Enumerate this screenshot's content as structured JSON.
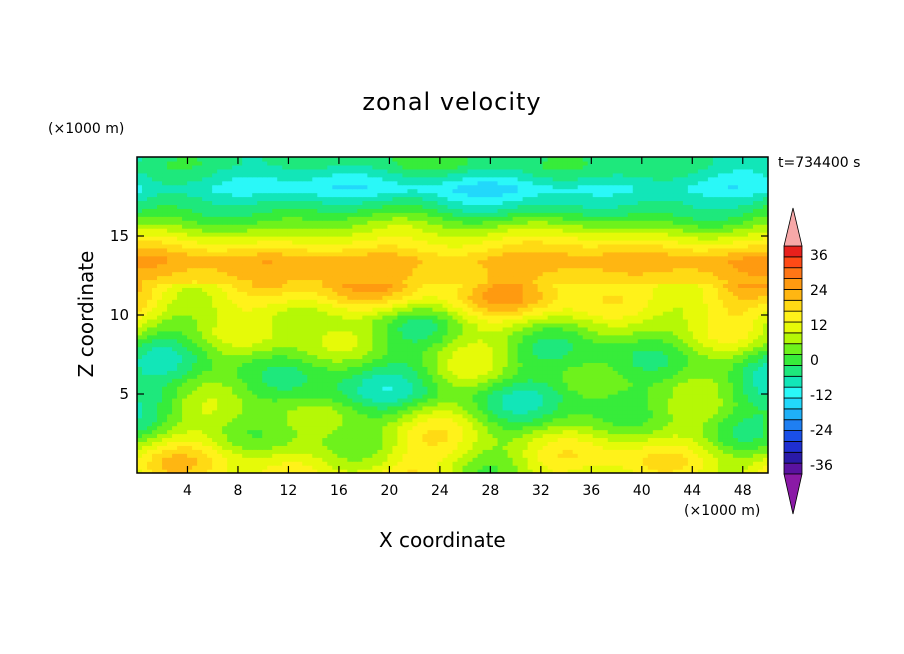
{
  "chart_data": {
    "type": "heatmap",
    "title": "zonal velocity",
    "xlabel": "X coordinate",
    "ylabel": "Z coordinate",
    "x_unit": "(×1000 m)",
    "y_unit": "(×1000 m)",
    "time_label": "t=734400 s",
    "xlim": [
      0,
      50
    ],
    "ylim": [
      0,
      20
    ],
    "x_ticks": [
      "4",
      "8",
      "12",
      "16",
      "20",
      "24",
      "28",
      "32",
      "36",
      "40",
      "44",
      "48"
    ],
    "y_ticks": [
      "5",
      "10",
      "15"
    ],
    "colorbar": {
      "levels": [
        -42,
        -39,
        -36,
        -33,
        -30,
        -27,
        -24,
        -21,
        -18,
        -15,
        -12,
        -9,
        -6,
        -3,
        0,
        3,
        6,
        9,
        12,
        15,
        18,
        21,
        24,
        27,
        30,
        33,
        36,
        39,
        42
      ],
      "tick_labels": [
        "36",
        "24",
        "12",
        "0",
        "-12",
        "-24",
        "-36"
      ],
      "colors": [
        "#8a1aa6",
        "#5a12a0",
        "#2a1aa8",
        "#1f2fd0",
        "#1a4fe8",
        "#1f7ff2",
        "#1fb0f7",
        "#22d8fb",
        "#2af8f8",
        "#12e6b8",
        "#1ee87c",
        "#37ec3a",
        "#6ef21c",
        "#b5f806",
        "#e6fa08",
        "#fff21a",
        "#ffda14",
        "#ffb612",
        "#ff9a10",
        "#ff7616",
        "#ff4a16",
        "#e8201c",
        "#f7a8a8"
      ],
      "extend": "both"
    },
    "field_rows": [
      {
        "z": 19.5,
        "u": -10
      },
      {
        "z": 18.0,
        "u": -17
      },
      {
        "z": 16.5,
        "u": -9
      },
      {
        "z": 15.2,
        "u": 0
      },
      {
        "z": 13.5,
        "u": 11
      },
      {
        "z": 11.0,
        "u": 6
      },
      {
        "z": 9.5,
        "u": -2
      },
      {
        "z": 7.0,
        "u": -6
      },
      {
        "z": 5.0,
        "u": -8
      },
      {
        "z": 3.0,
        "u": -3
      },
      {
        "z": 1.0,
        "u": 2
      }
    ]
  }
}
